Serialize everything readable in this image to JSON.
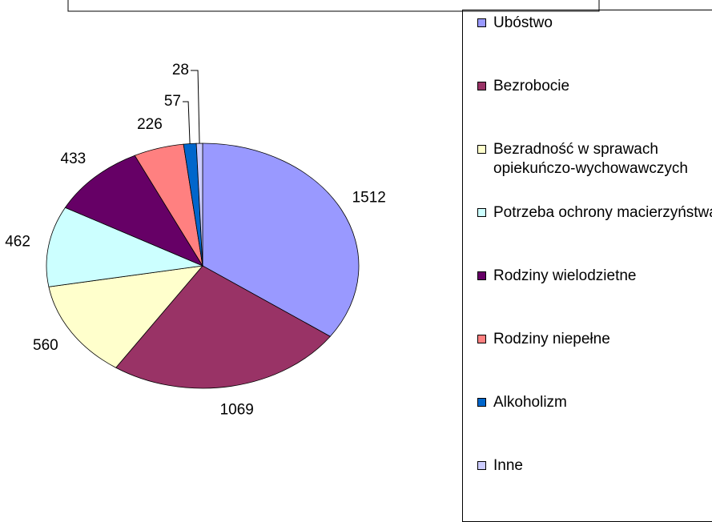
{
  "chart_data": {
    "type": "pie",
    "categories": [
      "Ubóstwo",
      "Bezrobocie",
      "Bezradność w sprawach opiekuńczo-wychowawczych",
      "Potrzeba ochrony macierzyństwa",
      "Rodziny wielodzietne",
      "Rodziny niepełne",
      "Alkoholizm",
      "Inne"
    ],
    "values": [
      1512,
      1069,
      560,
      462,
      433,
      226,
      57,
      28
    ],
    "colors": [
      "#9999ff",
      "#993366",
      "#ffffcc",
      "#ccffff",
      "#660066",
      "#ff8080",
      "#0066cc",
      "#ccccff"
    ],
    "legend": "right"
  }
}
